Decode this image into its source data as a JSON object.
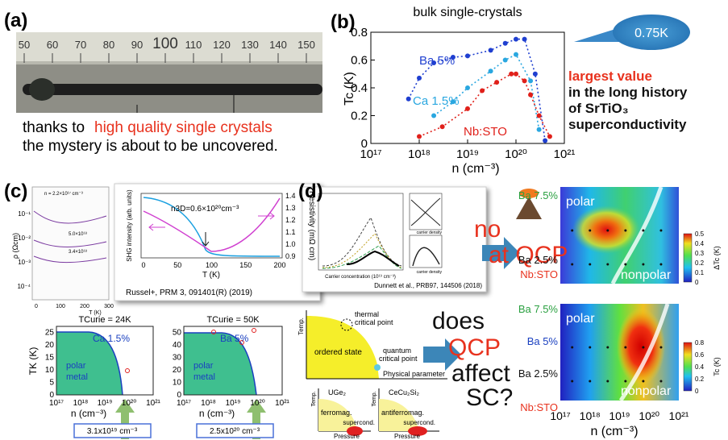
{
  "panel_a": {
    "label": "(a)",
    "ruler_marks": [
      "50",
      "60",
      "70",
      "80",
      "90",
      "100",
      "110",
      "120",
      "130",
      "140",
      "150"
    ],
    "caption_lead": "thanks to",
    "caption_highlight": "high quality single crystals",
    "caption_line2": "the mystery is about to be uncovered."
  },
  "panel_b": {
    "label": "(b)",
    "chart_data": {
      "type": "line",
      "title": "bulk single-crystals",
      "x_label": "n (cm⁻³)",
      "y_label": "Tc (K)",
      "xscale": "log",
      "xlim": [
        1e+17,
        1e+21
      ],
      "xticks": [
        {
          "value": 1e+17,
          "label": "10¹⁷"
        },
        {
          "value": 1e+18,
          "label": "10¹⁸"
        },
        {
          "value": 1e+19,
          "label": "10¹⁹"
        },
        {
          "value": 1e+20,
          "label": "10²⁰"
        },
        {
          "value": 1e+21,
          "label": "10²¹"
        }
      ],
      "ylim": [
        0,
        0.8
      ],
      "yticks": [
        0,
        0.2,
        0.4,
        0.6,
        0.8
      ],
      "series": [
        {
          "name": "Ba 5%",
          "color": "#1f3fd0",
          "x": [
            6e+17,
            1e+18,
            2e+18,
            5e+18,
            1e+19,
            3e+19,
            6e+19,
            1e+20,
            1.5e+20,
            2.5e+20,
            4e+20
          ],
          "values": [
            0.32,
            0.47,
            0.58,
            0.62,
            0.63,
            0.67,
            0.72,
            0.75,
            0.75,
            0.5,
            0.02
          ]
        },
        {
          "name": "Ca 1.5%",
          "color": "#2aa7e0",
          "x": [
            2e+18,
            5e+18,
            1e+19,
            3e+19,
            6e+19,
            1e+20,
            2e+20,
            3e+20
          ],
          "values": [
            0.2,
            0.3,
            0.4,
            0.52,
            0.6,
            0.64,
            0.45,
            0.1
          ]
        },
        {
          "name": "Nb:STO",
          "color": "#e0201a",
          "x": [
            1e+18,
            3e+18,
            1e+19,
            2e+19,
            4e+19,
            8e+19,
            1e+20,
            1.5e+20,
            2e+20,
            3e+20,
            5e+20
          ],
          "values": [
            0.05,
            0.12,
            0.25,
            0.38,
            0.44,
            0.5,
            0.5,
            0.45,
            0.35,
            0.2,
            0.05
          ]
        }
      ]
    },
    "callout": "0.75K",
    "notes": [
      "largest value",
      "in the long history",
      "of SrTiO₃",
      "superconductivity"
    ]
  },
  "panel_c": {
    "label": "(c)",
    "resistivity_plot": {
      "y_label": "ρ (Ωcm)",
      "y_ticks": [
        "10⁻¹",
        "10⁻²",
        "10⁻³",
        "10⁻⁴"
      ],
      "x_ticks": [
        "0",
        "100",
        "200",
        "300"
      ],
      "x_label": "T (K)",
      "curve_labels": [
        "n = 2.2×10¹⁷ cm⁻³",
        "5.0×10¹⁸",
        "3.4×10¹⁸"
      ]
    },
    "shg_inset": {
      "annotation": "n3D=0.6×10²⁰cm⁻³",
      "y_label": "SHG intensity (arb. units)",
      "y2_label": "Resistivity (mΩ cm)",
      "y2_ticks": [
        "1.4",
        "1.3",
        "1.2",
        "1.1",
        "1.0",
        "0.9"
      ],
      "x_ticks": [
        "0",
        "50",
        "100",
        "150",
        "200"
      ],
      "x_label": "T (K)",
      "citation": "Russel+, PRM 3, 091401(R) (2019)"
    },
    "phase_diagrams": [
      {
        "title": "TCurie = 24K",
        "dopant": "Ca 1.5%",
        "region": [
          "polar",
          "metal"
        ],
        "y_label": "TK (K)",
        "y_ticks": [
          "0",
          "5",
          "10",
          "15",
          "20",
          "25"
        ],
        "x_ticks": [
          "10¹⁷",
          "10¹⁸",
          "10¹⁹",
          "10²⁰",
          "10²¹"
        ],
        "x_label": "n (cm⁻³)",
        "critical_density": "3.1x10¹⁹ cm⁻³"
      },
      {
        "title": "TCurie = 50K",
        "dopant": "Ba 5%",
        "region": [
          "polar",
          "metal"
        ],
        "y_ticks": [
          "0",
          "10",
          "20",
          "30",
          "40",
          "50"
        ],
        "x_ticks": [
          "10¹⁷",
          "10¹⁸",
          "10¹⁹",
          "10²⁰",
          "10²¹"
        ],
        "x_label": "n (cm⁻³)",
        "critical_density": "2.5x10²⁰ cm⁻³"
      }
    ]
  },
  "panel_d": {
    "label": "(d)",
    "theory_figure": {
      "x_label": "Carrier concentration (10¹⁹ cm⁻³)",
      "citation": "Dunnett et al., PRB97, 144506 (2018)",
      "sketch_labels": [
        "carrier density",
        "carrier density"
      ]
    },
    "question_1": [
      "no",
      "at QCP"
    ],
    "question_2": [
      "does",
      "QCP",
      "affect",
      "SC?"
    ],
    "schematic": {
      "temp": "Temp.",
      "thermal": [
        "thermal",
        "critical point"
      ],
      "ordered": "ordered state",
      "quantum": [
        "quantum",
        "critical point"
      ],
      "parameter": "Physical parameter"
    },
    "examples": [
      {
        "temp": "Temp.",
        "compound": "UGe₂",
        "order": "ferromag.",
        "sc": "supercond.",
        "pressure": "Pressure"
      },
      {
        "temp": "Temp.",
        "compound": "CeCu₂Si₂",
        "order": "antiferromag.",
        "sc": "supercond.",
        "pressure": "Pressure"
      }
    ],
    "heatmaps": [
      {
        "row_labels": [
          "Ba 7.5%",
          "Ba 2.5%",
          "Nb:STO"
        ],
        "phase_labels": [
          "polar",
          "nonpolar"
        ],
        "colorbar_label": "ΔTc (K)",
        "colorbar_ticks": [
          "0.5",
          "0.4",
          "0.3",
          "0.2",
          "0.1",
          "0"
        ]
      },
      {
        "row_labels": [
          "Ba 7.5%",
          "Ba 5%",
          "Ba 2.5%",
          "Nb:STO"
        ],
        "phase_labels": [
          "polar",
          "nonpolar"
        ],
        "colorbar_label": "Tc (K)",
        "colorbar_ticks": [
          "0.8",
          "0.6",
          "0.4",
          "0.2",
          "0"
        ]
      }
    ],
    "x_ticks": [
      "10¹⁷",
      "10¹⁸",
      "10¹⁹",
      "10²⁰",
      "10²¹"
    ],
    "x_label": "n (cm⁻³)"
  }
}
